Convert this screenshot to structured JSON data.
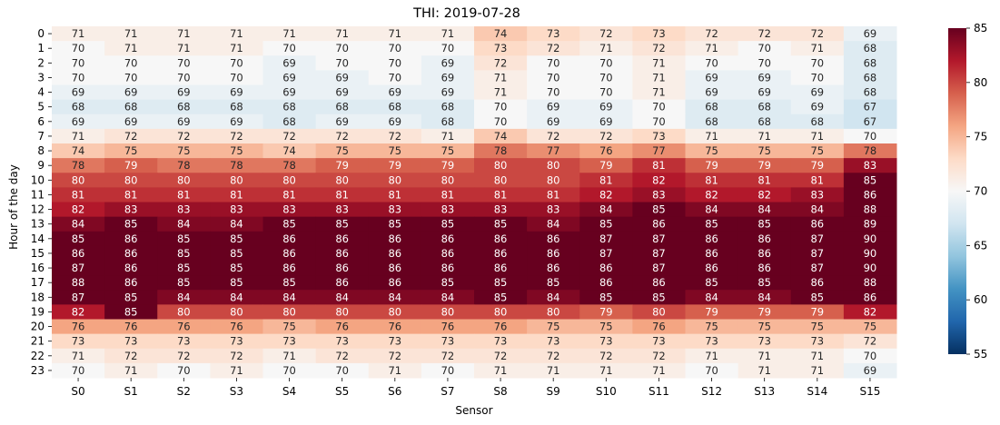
{
  "chart_data": {
    "type": "heatmap",
    "title": "THI: 2019-07-28",
    "xlabel": "Sensor",
    "ylabel": "Hour of the day",
    "colormap": "RdBu_r",
    "vmin": 55,
    "vmax": 85,
    "colorbar_ticks": [
      "55",
      "60",
      "65",
      "70",
      "75",
      "80",
      "85"
    ],
    "x": [
      "S0",
      "S1",
      "S2",
      "S3",
      "S4",
      "S5",
      "S6",
      "S7",
      "S8",
      "S9",
      "S10",
      "S11",
      "S12",
      "S13",
      "S14",
      "S15"
    ],
    "y": [
      "0",
      "1",
      "2",
      "3",
      "4",
      "5",
      "6",
      "7",
      "8",
      "9",
      "10",
      "11",
      "12",
      "13",
      "14",
      "15",
      "16",
      "17",
      "18",
      "19",
      "20",
      "21",
      "22",
      "23"
    ],
    "values": [
      [
        71,
        71,
        71,
        71,
        71,
        71,
        71,
        71,
        74,
        73,
        72,
        73,
        72,
        72,
        72,
        69
      ],
      [
        70,
        71,
        71,
        71,
        70,
        70,
        70,
        70,
        73,
        72,
        71,
        72,
        71,
        70,
        71,
        68
      ],
      [
        70,
        70,
        70,
        70,
        69,
        70,
        70,
        69,
        72,
        70,
        70,
        71,
        70,
        70,
        70,
        68
      ],
      [
        70,
        70,
        70,
        70,
        69,
        69,
        70,
        69,
        71,
        70,
        70,
        71,
        69,
        69,
        70,
        68
      ],
      [
        69,
        69,
        69,
        69,
        69,
        69,
        69,
        69,
        71,
        70,
        70,
        71,
        69,
        69,
        69,
        68
      ],
      [
        68,
        68,
        68,
        68,
        68,
        68,
        68,
        68,
        70,
        69,
        69,
        70,
        68,
        68,
        69,
        67
      ],
      [
        69,
        69,
        69,
        69,
        68,
        69,
        69,
        68,
        70,
        69,
        69,
        70,
        68,
        68,
        68,
        67
      ],
      [
        71,
        72,
        72,
        72,
        72,
        72,
        72,
        71,
        74,
        72,
        72,
        73,
        71,
        71,
        71,
        70
      ],
      [
        74,
        75,
        75,
        75,
        74,
        75,
        75,
        75,
        78,
        77,
        76,
        77,
        75,
        75,
        75,
        78
      ],
      [
        78,
        79,
        78,
        78,
        78,
        79,
        79,
        79,
        80,
        80,
        79,
        81,
        79,
        79,
        79,
        83
      ],
      [
        80,
        80,
        80,
        80,
        80,
        80,
        80,
        80,
        80,
        80,
        81,
        82,
        81,
        81,
        81,
        85
      ],
      [
        81,
        81,
        81,
        81,
        81,
        81,
        81,
        81,
        81,
        81,
        82,
        83,
        82,
        82,
        83,
        86
      ],
      [
        82,
        83,
        83,
        83,
        83,
        83,
        83,
        83,
        83,
        83,
        84,
        85,
        84,
        84,
        84,
        88
      ],
      [
        84,
        85,
        84,
        84,
        85,
        85,
        85,
        85,
        85,
        84,
        85,
        86,
        85,
        85,
        86,
        89
      ],
      [
        85,
        86,
        85,
        85,
        86,
        86,
        86,
        86,
        86,
        86,
        87,
        87,
        86,
        86,
        87,
        90
      ],
      [
        86,
        86,
        85,
        85,
        86,
        86,
        86,
        86,
        86,
        86,
        87,
        87,
        86,
        86,
        87,
        90
      ],
      [
        87,
        86,
        85,
        85,
        86,
        86,
        86,
        86,
        86,
        86,
        86,
        87,
        86,
        86,
        87,
        90
      ],
      [
        88,
        86,
        85,
        85,
        85,
        86,
        86,
        85,
        85,
        85,
        86,
        86,
        85,
        85,
        86,
        88
      ],
      [
        87,
        85,
        84,
        84,
        84,
        84,
        84,
        84,
        85,
        84,
        85,
        85,
        84,
        84,
        85,
        86
      ],
      [
        82,
        85,
        80,
        80,
        80,
        80,
        80,
        80,
        80,
        80,
        79,
        80,
        79,
        79,
        79,
        82
      ],
      [
        76,
        76,
        76,
        76,
        75,
        76,
        76,
        76,
        76,
        75,
        75,
        76,
        75,
        75,
        75,
        75
      ],
      [
        73,
        73,
        73,
        73,
        73,
        73,
        73,
        73,
        73,
        73,
        73,
        73,
        73,
        73,
        73,
        72
      ],
      [
        71,
        72,
        72,
        72,
        71,
        72,
        72,
        72,
        72,
        72,
        72,
        72,
        71,
        71,
        71,
        70
      ],
      [
        70,
        71,
        70,
        71,
        70,
        70,
        71,
        70,
        71,
        71,
        71,
        71,
        70,
        71,
        71,
        69
      ]
    ]
  }
}
